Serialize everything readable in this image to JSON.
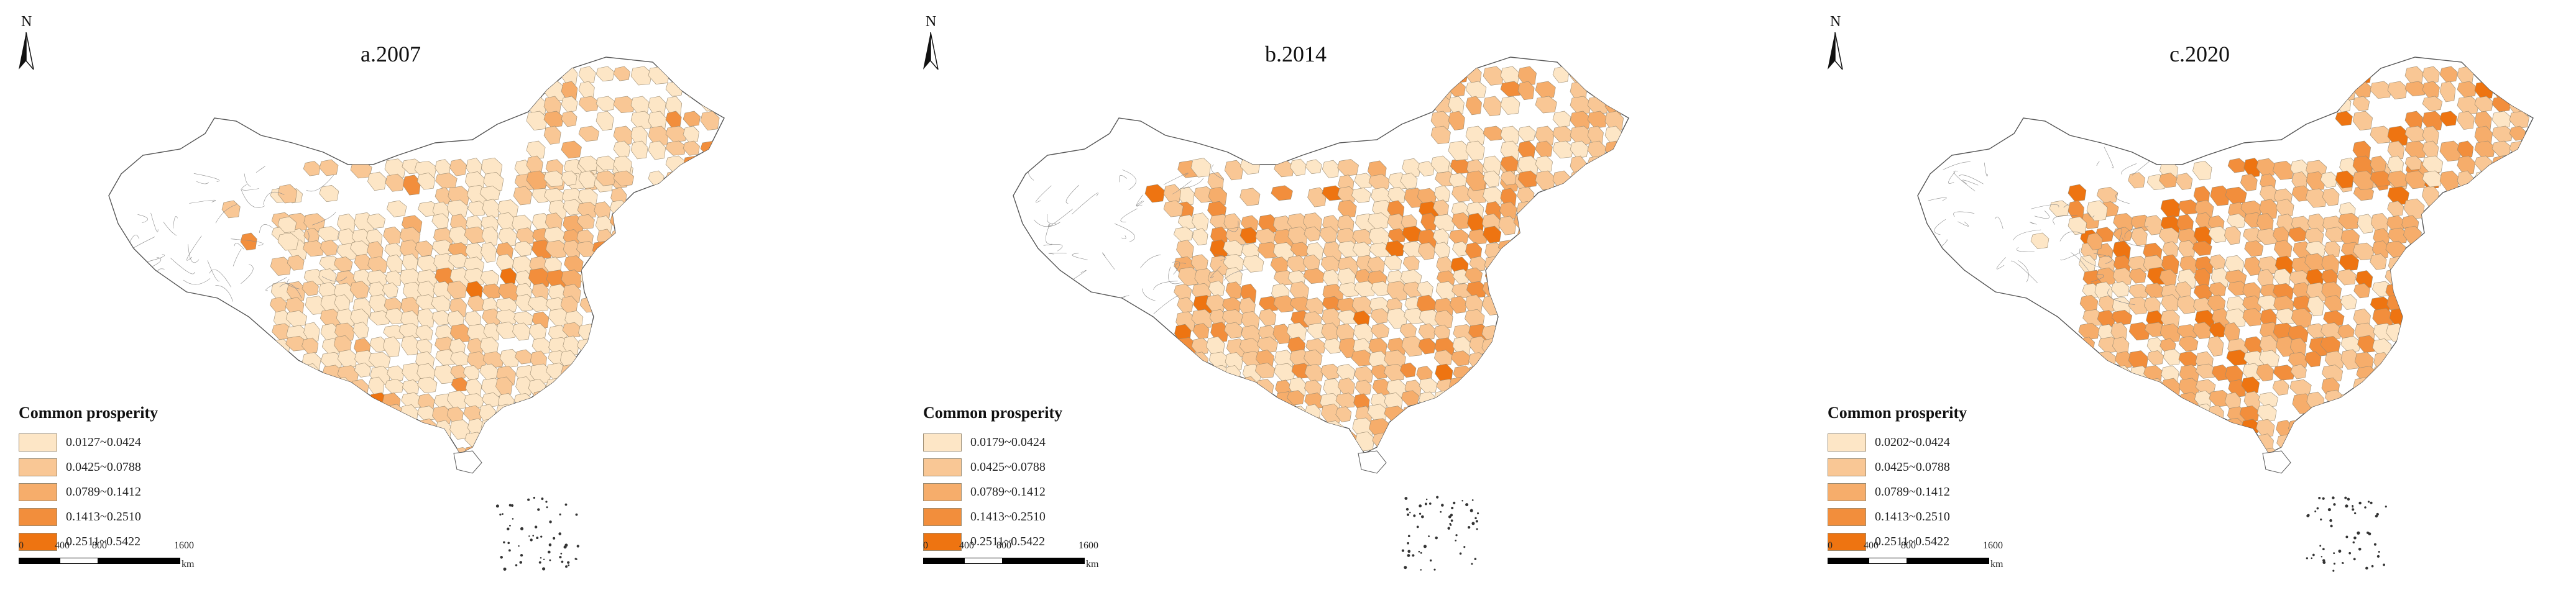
{
  "panels": [
    {
      "north_label": "N",
      "title": "a.2007",
      "legend_title": "Common prosperity",
      "legend": [
        {
          "label": "0.0127~0.0424",
          "color": "#fde6c6"
        },
        {
          "label": "0.0425~0.0788",
          "color": "#f9c795"
        },
        {
          "label": "0.0789~0.1412",
          "color": "#f6ad6b"
        },
        {
          "label": "0.1413~0.2510",
          "color": "#f28e3c"
        },
        {
          "label": "0.2511~0.5422",
          "color": "#ee7411"
        }
      ],
      "scale": {
        "ticks": [
          "0",
          "400",
          "800",
          "1600"
        ],
        "unit": "km"
      }
    },
    {
      "north_label": "N",
      "title": "b.2014",
      "legend_title": "Common prosperity",
      "legend": [
        {
          "label": "0.0179~0.0424",
          "color": "#fde6c6"
        },
        {
          "label": "0.0425~0.0788",
          "color": "#f9c795"
        },
        {
          "label": "0.0789~0.1412",
          "color": "#f6ad6b"
        },
        {
          "label": "0.1413~0.2510",
          "color": "#f28e3c"
        },
        {
          "label": "0.2511~0.5422",
          "color": "#ee7411"
        }
      ],
      "scale": {
        "ticks": [
          "0",
          "400",
          "800",
          "1600"
        ],
        "unit": "km"
      }
    },
    {
      "north_label": "N",
      "title": "c.2020",
      "legend_title": "Common prosperity",
      "legend": [
        {
          "label": "0.0202~0.0424",
          "color": "#fde6c6"
        },
        {
          "label": "0.0425~0.0788",
          "color": "#f9c795"
        },
        {
          "label": "0.0789~0.1412",
          "color": "#f6ad6b"
        },
        {
          "label": "0.1413~0.2510",
          "color": "#f28e3c"
        },
        {
          "label": "0.2511~0.5422",
          "color": "#ee7411"
        }
      ],
      "scale": {
        "ticks": [
          "0",
          "400",
          "800",
          "1600"
        ],
        "unit": "km"
      }
    }
  ],
  "colors": {
    "empty": "#ffffff",
    "outline": "#555555",
    "border": "#9a8a70"
  }
}
